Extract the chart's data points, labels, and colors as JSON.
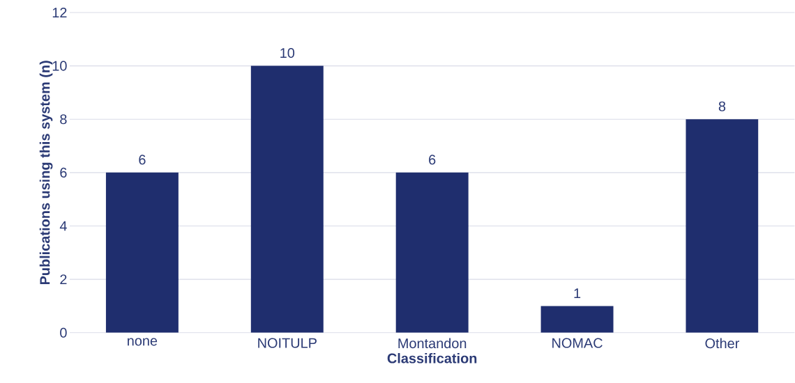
{
  "chart_data": {
    "type": "bar",
    "xlabel": "Classification",
    "ylabel": "Publications using this system (n)",
    "categories": [
      "none",
      "NOITULP",
      "Montandon",
      "NOMAC",
      "Other"
    ],
    "values": [
      6,
      10,
      6,
      1,
      8
    ],
    "color": "#1f2e6e",
    "ylim": [
      0,
      12
    ],
    "yticks": [
      0,
      2,
      4,
      6,
      8,
      10,
      12
    ],
    "grid": "y",
    "data_labels": true
  }
}
